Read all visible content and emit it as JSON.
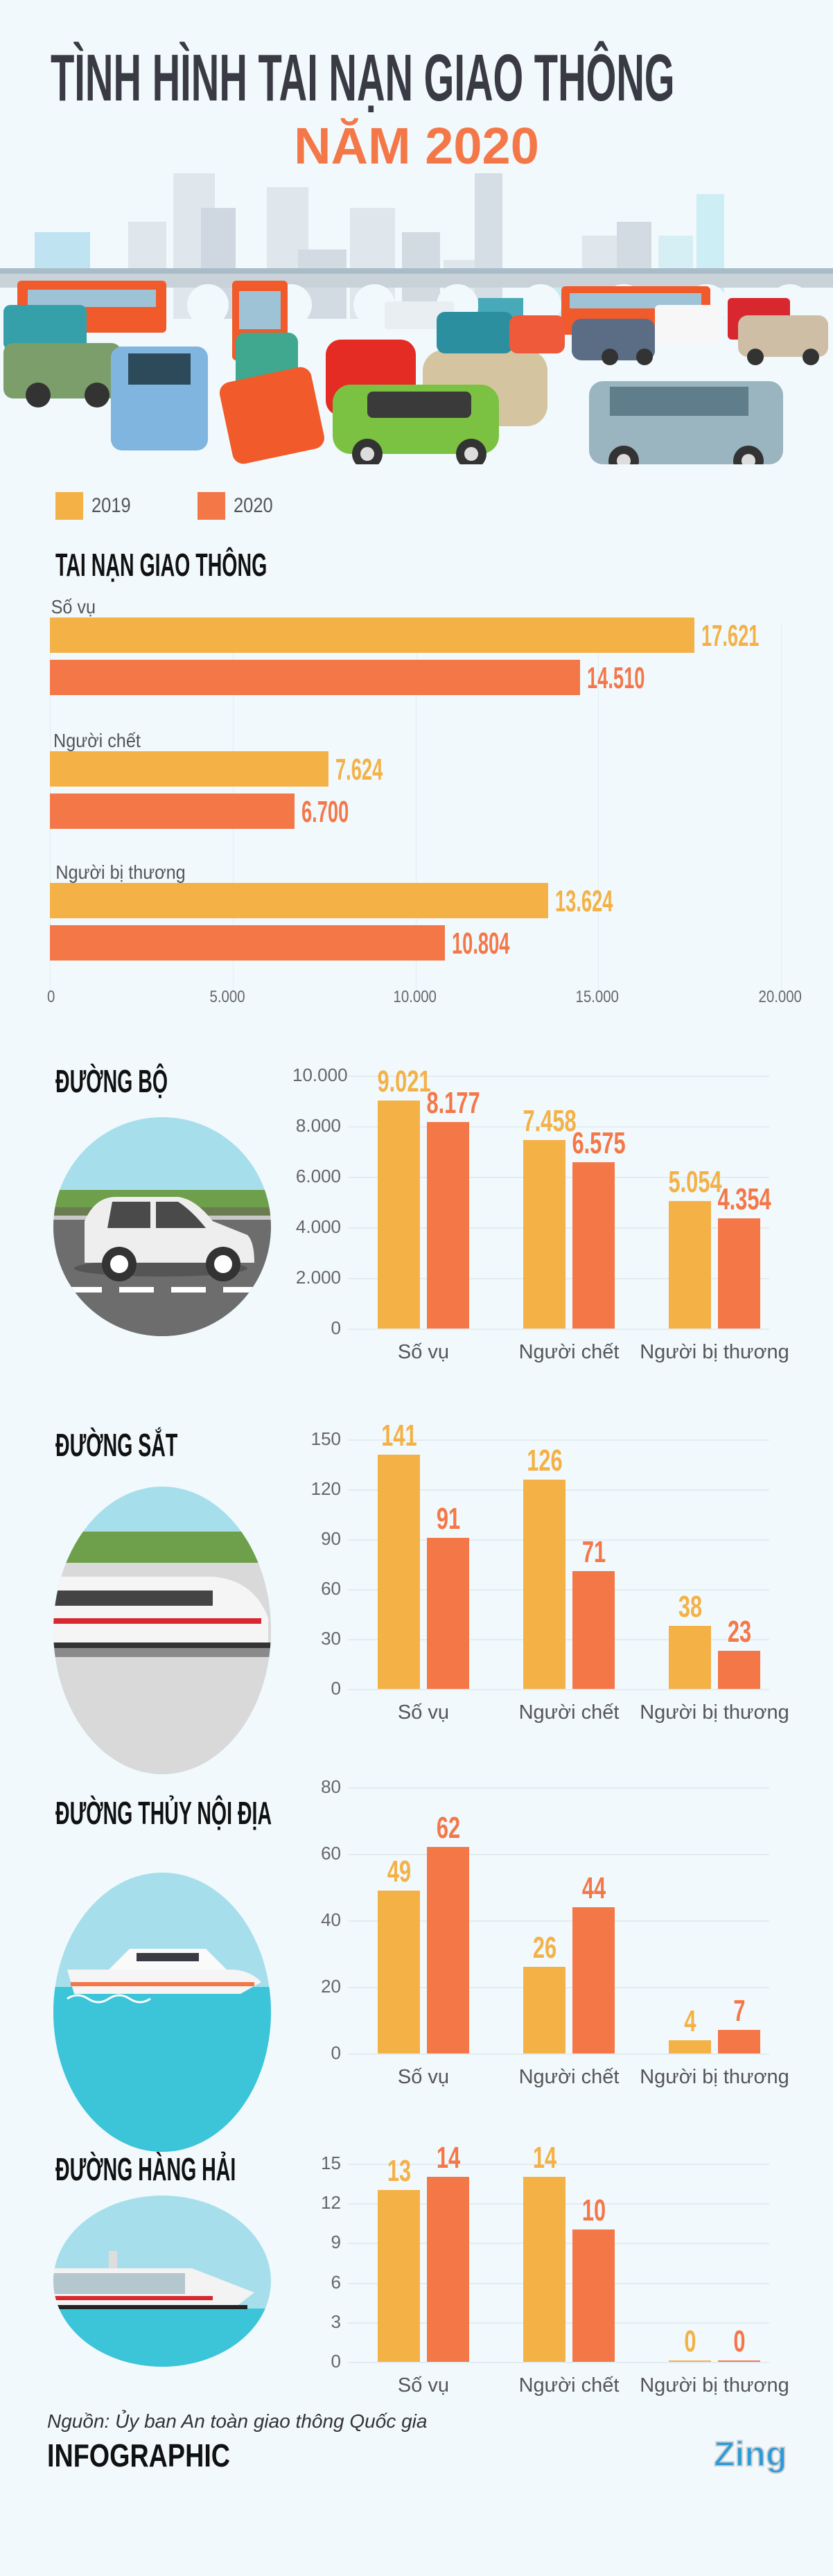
{
  "header": {
    "title_line1": "TÌNH HÌNH TAI NẠN GIAO THÔNG",
    "title_line2": "NĂM 2020"
  },
  "colors": {
    "y2019": "#f4b146",
    "y2020": "#f47748",
    "background": "#f1f9fd",
    "title": "#3a3a44"
  },
  "legend": [
    {
      "label": "2019"
    },
    {
      "label": "2020"
    }
  ],
  "chart_data": [
    {
      "type": "bar",
      "orientation": "horizontal",
      "title": "TAI NẠN GIAO THÔNG",
      "categories": [
        "Số vụ",
        "Người chết",
        "Người bị thương"
      ],
      "series": [
        {
          "name": "2019",
          "values": [
            17621,
            7624,
            13624
          ],
          "labels": [
            "17.621",
            "7.624",
            "13.624"
          ]
        },
        {
          "name": "2020",
          "values": [
            14510,
            6700,
            10804
          ],
          "labels": [
            "14.510",
            "6.700",
            "10.804"
          ]
        }
      ],
      "xlim": [
        0,
        20000
      ],
      "xticks": [
        "0",
        "5.000",
        "10.000",
        "15.000",
        "20.000"
      ],
      "grid": true,
      "legend": "top-left"
    },
    {
      "type": "bar",
      "title": "ĐƯỜNG BỘ",
      "icon": "car-road-icon",
      "categories": [
        "Số vụ",
        "Người chết",
        "Người bị thương"
      ],
      "series": [
        {
          "name": "2019",
          "values": [
            9021,
            7458,
            5054
          ],
          "labels": [
            "9.021",
            "7.458",
            "5.054"
          ]
        },
        {
          "name": "2020",
          "values": [
            8177,
            6575,
            4354
          ],
          "labels": [
            "8.177",
            "6.575",
            "4.354"
          ]
        }
      ],
      "ylim": [
        0,
        10000
      ],
      "yticks": [
        "0",
        "2.000",
        "4.000",
        "6.000",
        "8.000",
        "10.000"
      ],
      "grid": true
    },
    {
      "type": "bar",
      "title": "ĐƯỜNG SẮT",
      "icon": "train-icon",
      "categories": [
        "Số vụ",
        "Người chết",
        "Người bị thương"
      ],
      "series": [
        {
          "name": "2019",
          "values": [
            141,
            126,
            38
          ],
          "labels": [
            "141",
            "126",
            "38"
          ]
        },
        {
          "name": "2020",
          "values": [
            91,
            71,
            23
          ],
          "labels": [
            "91",
            "71",
            "23"
          ]
        }
      ],
      "ylim": [
        0,
        150
      ],
      "yticks": [
        "0",
        "30",
        "60",
        "90",
        "120",
        "150"
      ],
      "grid": true
    },
    {
      "type": "bar",
      "title": "ĐƯỜNG THỦY NỘI ĐỊA",
      "icon": "boat-icon",
      "categories": [
        "Số vụ",
        "Người chết",
        "Người bị thương"
      ],
      "series": [
        {
          "name": "2019",
          "values": [
            49,
            26,
            4
          ],
          "labels": [
            "49",
            "26",
            "4"
          ]
        },
        {
          "name": "2020",
          "values": [
            62,
            44,
            7
          ],
          "labels": [
            "62",
            "44",
            "7"
          ]
        }
      ],
      "ylim": [
        0,
        80
      ],
      "yticks": [
        "0",
        "20",
        "40",
        "60",
        "80"
      ],
      "grid": true
    },
    {
      "type": "bar",
      "title": "ĐƯỜNG HÀNG HẢI",
      "icon": "cruise-ship-icon",
      "categories": [
        "Số vụ",
        "Người chết",
        "Người bị thương"
      ],
      "series": [
        {
          "name": "2019",
          "values": [
            13,
            14,
            0
          ],
          "labels": [
            "13",
            "14",
            "0"
          ]
        },
        {
          "name": "2020",
          "values": [
            14,
            10,
            0
          ],
          "labels": [
            "14",
            "10",
            "0"
          ]
        }
      ],
      "ylim": [
        0,
        15
      ],
      "yticks": [
        "0",
        "3",
        "6",
        "9",
        "12",
        "15"
      ],
      "grid": true
    }
  ],
  "footer": {
    "source": "Nguồn: Ủy ban An toàn giao thông Quốc gia",
    "brand": "INFOGRAPHIC",
    "logo": "Zing"
  }
}
